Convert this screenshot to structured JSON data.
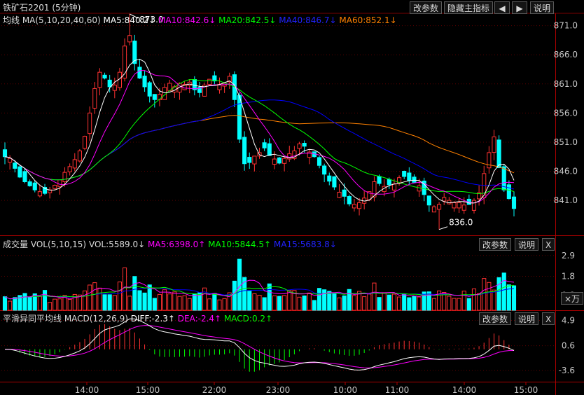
{
  "header": {
    "title": "铁矿石2201 (5分钟)",
    "buttons": [
      "改参数",
      "隐藏主指标",
      "◀",
      "▶",
      "说明"
    ]
  },
  "price_panel": {
    "title": "均线 MA(5,10,20,40,60)",
    "ma5": "MA5:840.2↓",
    "ma10": "MA10:842.6↓",
    "ma20": "MA20:842.5↓",
    "ma40": "MA40:846.7↓",
    "ma60": "MA60:852.1↓",
    "high_label": "873.0",
    "low_label": "836.0"
  },
  "volume_panel": {
    "title": "成交量 VOL(5,10,15)",
    "vol": "VOL:5589.0↓",
    "ma5": "MA5:6398.0↑",
    "ma10": "MA10:5844.5↑",
    "ma15": "MA15:5683.8↓",
    "buttons": [
      "改参数",
      "说明",
      "X"
    ],
    "unit": "×万"
  },
  "macd_panel": {
    "title": "平滑异同平均线 MACD(12,26,9)",
    "diff": "DIFF:-2.3↑",
    "dea": "DEA:-2.4↑",
    "macd": "MACD:0.2↑",
    "buttons": [
      "改参数",
      "说明",
      "X"
    ]
  },
  "colors": {
    "up": "#ff3232",
    "down": "#00ffff",
    "ma5": "#ffffff",
    "ma10": "#ff00ff",
    "ma20": "#00ff00",
    "ma40": "#0000ff",
    "ma60": "#ff8000",
    "dea": "#ff00ff"
  },
  "chart_data": [
    {
      "type": "candlestick",
      "y_ticks": [
        "871.0",
        "866.0",
        "861.0",
        "856.0",
        "851.0",
        "846.0",
        "841.0"
      ],
      "ylim": [
        835,
        873
      ],
      "x_ticks": [
        "14:00",
        "15:00",
        "22:00",
        "23:00",
        "10:00",
        "11:00",
        "14:00",
        "15:00"
      ],
      "closes": [
        848.5,
        848.2,
        846.5,
        845,
        844.2,
        843.5,
        842.8,
        842.5,
        842.2,
        842.8,
        843.6,
        844.5,
        845.8,
        846.8,
        848,
        849.5,
        852,
        856,
        860.2,
        863,
        862,
        860.5,
        860.8,
        863,
        867.5,
        869.3,
        864.5,
        862,
        860.5,
        858.9,
        858.3,
        859.2,
        860.4,
        861.1,
        860.5,
        861.1,
        860.9,
        861.3,
        860,
        859.5,
        860.8,
        861.8,
        861.5,
        860.9,
        861.1,
        862.3,
        858.3,
        851.5,
        847.3,
        847.5,
        848.6,
        849.2,
        850,
        848.7,
        848.1,
        847.4,
        848.2,
        849,
        849.5,
        850.7,
        850.3,
        849.3,
        848.5,
        847,
        845.5,
        844.3,
        843.3,
        842.4,
        841.7,
        840.4,
        840.3,
        840.6,
        841.4,
        842.5,
        844.2,
        843.9,
        843.4,
        843.7,
        843.8,
        844.9,
        845.1,
        844.4,
        844.1,
        843.5,
        842,
        840.2,
        839.9,
        840.3,
        841.5,
        841,
        840.6,
        840.6,
        840.2,
        840.3,
        841,
        842.3,
        845.6,
        849.2,
        851.9,
        846.6,
        842.8,
        841.3,
        839.6
      ]
    },
    {
      "type": "bar",
      "name": "volume",
      "y_ticks": [
        "2.9",
        "1.8",
        "0.8"
      ],
      "unit": "×万"
    },
    {
      "type": "line",
      "name": "MACD",
      "y_ticks": [
        "4.9",
        "0.6",
        "-3.6"
      ],
      "series": [
        "DIFF",
        "DEA",
        "MACD"
      ]
    }
  ]
}
